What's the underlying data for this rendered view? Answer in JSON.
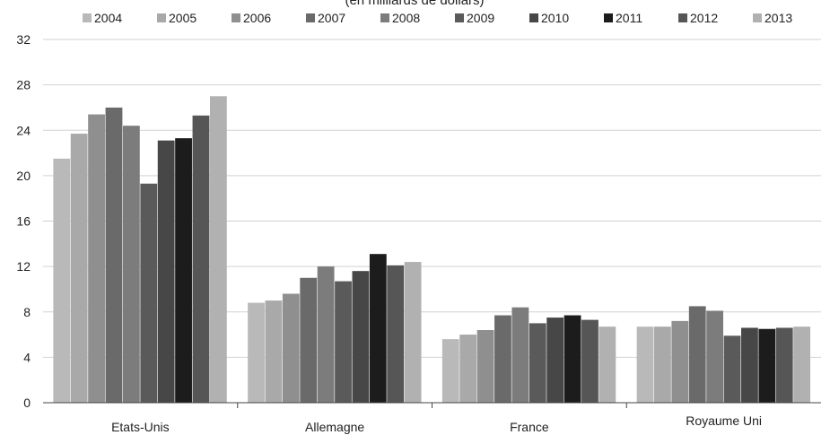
{
  "chart_data": {
    "type": "bar",
    "subtitle": "(en milliards de dollars)",
    "categories": [
      "Etats-Unis",
      "Allemagne",
      "France",
      "Royaume Uni"
    ],
    "ylim": [
      0,
      32
    ],
    "yticks": [
      0,
      4,
      8,
      12,
      16,
      20,
      24,
      28,
      32
    ],
    "grid": true,
    "legend_position": "top",
    "series": [
      {
        "name": "2004",
        "color": "#b9b9b9",
        "values": [
          21.5,
          8.8,
          5.6,
          6.7
        ]
      },
      {
        "name": "2005",
        "color": "#a9a9a9",
        "values": [
          23.7,
          9.0,
          6.0,
          6.7
        ]
      },
      {
        "name": "2006",
        "color": "#8f8f8f",
        "values": [
          25.4,
          9.6,
          6.4,
          7.2
        ]
      },
      {
        "name": "2007",
        "color": "#6a6a6a",
        "values": [
          26.0,
          11.0,
          7.7,
          8.5
        ]
      },
      {
        "name": "2008",
        "color": "#7c7c7c",
        "values": [
          24.4,
          12.0,
          8.4,
          8.1
        ]
      },
      {
        "name": "2009",
        "color": "#5a5a5a",
        "values": [
          19.3,
          10.7,
          7.0,
          5.9
        ]
      },
      {
        "name": "2010",
        "color": "#474747",
        "values": [
          23.1,
          11.6,
          7.5,
          6.6
        ]
      },
      {
        "name": "2011",
        "color": "#1c1c1c",
        "values": [
          23.3,
          13.1,
          7.7,
          6.5
        ]
      },
      {
        "name": "2012",
        "color": "#565656",
        "values": [
          25.3,
          12.1,
          7.3,
          6.6
        ]
      },
      {
        "name": "2013",
        "color": "#b1b1b1",
        "values": [
          27.0,
          12.4,
          6.7,
          6.7
        ]
      }
    ]
  }
}
